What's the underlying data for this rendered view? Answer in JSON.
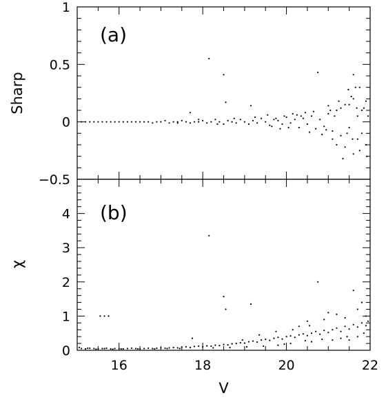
{
  "chart_data": [
    {
      "type": "scatter",
      "panel_label": "(a)",
      "ylabel": "Sharp",
      "xlabel": "",
      "xlim": [
        15,
        22
      ],
      "ylim": [
        -0.5,
        1
      ],
      "x_ticks": [
        "16",
        "18",
        "20",
        "22"
      ],
      "y_ticks": [
        "−0.5",
        "0",
        "0.5",
        "1"
      ],
      "x_tick_values": [
        16,
        18,
        20,
        22
      ],
      "y_tick_values": [
        -0.5,
        0,
        0.5,
        1
      ],
      "x_minor_step": 0.5,
      "y_minor_step": 0.1,
      "grid": false,
      "legend": "none",
      "color": "#000000",
      "points": [
        [
          15.1,
          0.0
        ],
        [
          15.2,
          0.0
        ],
        [
          15.3,
          0.0
        ],
        [
          15.4,
          0.0
        ],
        [
          15.5,
          0.0
        ],
        [
          15.6,
          0.0
        ],
        [
          15.7,
          0.0
        ],
        [
          15.8,
          0.0
        ],
        [
          15.9,
          0.0
        ],
        [
          16.0,
          0.0
        ],
        [
          16.1,
          0.0
        ],
        [
          16.2,
          0.0
        ],
        [
          16.3,
          0.0
        ],
        [
          16.4,
          0.0
        ],
        [
          16.5,
          0.0
        ],
        [
          16.6,
          0.0
        ],
        [
          16.7,
          0.0
        ],
        [
          16.8,
          -0.01
        ],
        [
          16.9,
          0.0
        ],
        [
          17.0,
          0.0
        ],
        [
          17.1,
          0.01
        ],
        [
          17.2,
          -0.01
        ],
        [
          17.3,
          0.0
        ],
        [
          17.4,
          0.0
        ],
        [
          17.5,
          0.01
        ],
        [
          17.6,
          0.0
        ],
        [
          17.7,
          -0.01
        ],
        [
          17.8,
          0.0
        ],
        [
          17.9,
          0.0
        ],
        [
          18.0,
          0.01
        ],
        [
          18.1,
          -0.01
        ],
        [
          18.2,
          0.0
        ],
        [
          18.3,
          0.02
        ],
        [
          18.4,
          0.0
        ],
        [
          18.5,
          -0.02
        ],
        [
          18.6,
          0.01
        ],
        [
          18.7,
          0.0
        ],
        [
          18.8,
          -0.01
        ],
        [
          18.9,
          0.02
        ],
        [
          19.0,
          0.0
        ],
        [
          19.1,
          -0.02
        ],
        [
          19.2,
          0.01
        ],
        [
          19.3,
          -0.01
        ],
        [
          19.4,
          0.03
        ],
        [
          19.5,
          0.0
        ],
        [
          19.6,
          -0.03
        ],
        [
          19.7,
          0.02
        ],
        [
          19.8,
          0.01
        ],
        [
          19.9,
          -0.02
        ],
        [
          20.0,
          0.04
        ],
        [
          20.1,
          -0.01
        ],
        [
          20.2,
          0.02
        ],
        [
          20.3,
          -0.05
        ],
        [
          20.4,
          0.03
        ],
        [
          20.5,
          -0.02
        ],
        [
          20.6,
          0.05
        ],
        [
          20.7,
          -0.06
        ],
        [
          20.8,
          0.02
        ],
        [
          20.9,
          -0.04
        ],
        [
          21.0,
          0.07
        ],
        [
          21.1,
          -0.08
        ],
        [
          21.2,
          0.1
        ],
        [
          21.3,
          -0.12
        ],
        [
          21.4,
          0.15
        ],
        [
          21.5,
          -0.05
        ],
        [
          21.6,
          0.2
        ],
        [
          21.7,
          -0.15
        ],
        [
          21.8,
          0.1
        ],
        [
          21.9,
          -0.2
        ],
        [
          21.95,
          0.05
        ],
        [
          21.35,
          -0.32
        ],
        [
          21.55,
          0.22
        ],
        [
          21.75,
          -0.25
        ],
        [
          21.65,
          0.3
        ],
        [
          21.85,
          0.12
        ],
        [
          21.25,
          0.18
        ],
        [
          21.45,
          -0.1
        ],
        [
          21.05,
          0.1
        ],
        [
          20.95,
          -0.07
        ],
        [
          21.15,
          0.05
        ],
        [
          18.15,
          0.55
        ],
        [
          18.5,
          0.41
        ],
        [
          18.55,
          0.17
        ],
        [
          20.75,
          0.43
        ],
        [
          21.6,
          0.41
        ],
        [
          21.75,
          0.3
        ],
        [
          19.15,
          0.14
        ],
        [
          17.7,
          0.08
        ],
        [
          20.15,
          0.07
        ],
        [
          20.45,
          0.08
        ],
        [
          19.55,
          0.06
        ],
        [
          19.85,
          -0.06
        ],
        [
          20.25,
          0.06
        ],
        [
          20.55,
          -0.09
        ],
        [
          20.65,
          0.09
        ],
        [
          20.85,
          -0.11
        ],
        [
          21.0,
          0.14
        ],
        [
          21.1,
          -0.15
        ],
        [
          21.2,
          -0.2
        ],
        [
          21.3,
          0.12
        ],
        [
          21.4,
          -0.22
        ],
        [
          21.5,
          0.15
        ],
        [
          21.6,
          -0.28
        ],
        [
          21.7,
          0.05
        ],
        [
          21.8,
          -0.1
        ],
        [
          21.9,
          0.18
        ],
        [
          21.92,
          -0.3
        ],
        [
          21.68,
          0.12
        ],
        [
          21.58,
          -0.15
        ],
        [
          21.48,
          0.28
        ],
        [
          17.4,
          -0.01
        ],
        [
          17.9,
          0.02
        ],
        [
          18.35,
          -0.02
        ],
        [
          18.75,
          0.03
        ],
        [
          19.25,
          0.04
        ],
        [
          19.65,
          -0.04
        ],
        [
          19.95,
          0.05
        ],
        [
          20.35,
          0.05
        ],
        [
          20.05,
          -0.05
        ],
        [
          19.75,
          0.03
        ]
      ]
    },
    {
      "type": "scatter",
      "panel_label": "(b)",
      "ylabel": "χ",
      "xlabel": "V",
      "xlim": [
        15,
        22
      ],
      "ylim": [
        0,
        5
      ],
      "x_ticks": [
        "16",
        "18",
        "20",
        "22"
      ],
      "y_ticks": [
        "0",
        "1",
        "2",
        "3",
        "4"
      ],
      "x_tick_values": [
        16,
        18,
        20,
        22
      ],
      "y_tick_values": [
        0,
        1,
        2,
        3,
        4
      ],
      "x_minor_step": 0.5,
      "y_minor_step": 0.2,
      "grid": false,
      "legend": "none",
      "color": "#000000",
      "points": [
        [
          15.1,
          0.05
        ],
        [
          15.2,
          0.04
        ],
        [
          15.3,
          0.06
        ],
        [
          15.4,
          0.05
        ],
        [
          15.5,
          0.04
        ],
        [
          15.6,
          0.05
        ],
        [
          15.7,
          0.06
        ],
        [
          15.8,
          0.04
        ],
        [
          15.9,
          0.05
        ],
        [
          16.0,
          0.05
        ],
        [
          16.1,
          0.04
        ],
        [
          16.2,
          0.05
        ],
        [
          16.3,
          0.06
        ],
        [
          16.4,
          0.05
        ],
        [
          16.5,
          0.04
        ],
        [
          16.6,
          0.05
        ],
        [
          16.7,
          0.06
        ],
        [
          16.8,
          0.05
        ],
        [
          16.9,
          0.06
        ],
        [
          17.0,
          0.07
        ],
        [
          17.1,
          0.06
        ],
        [
          17.2,
          0.07
        ],
        [
          17.3,
          0.08
        ],
        [
          17.4,
          0.07
        ],
        [
          17.5,
          0.09
        ],
        [
          17.6,
          0.1
        ],
        [
          17.7,
          0.08
        ],
        [
          17.8,
          0.11
        ],
        [
          17.9,
          0.12
        ],
        [
          18.0,
          0.1
        ],
        [
          18.1,
          0.13
        ],
        [
          18.2,
          0.12
        ],
        [
          18.3,
          0.15
        ],
        [
          18.4,
          0.14
        ],
        [
          18.5,
          0.17
        ],
        [
          18.6,
          0.16
        ],
        [
          18.7,
          0.19
        ],
        [
          18.8,
          0.2
        ],
        [
          18.9,
          0.22
        ],
        [
          19.0,
          0.21
        ],
        [
          19.1,
          0.25
        ],
        [
          19.2,
          0.27
        ],
        [
          19.3,
          0.24
        ],
        [
          19.4,
          0.3
        ],
        [
          19.5,
          0.32
        ],
        [
          19.6,
          0.29
        ],
        [
          19.7,
          0.35
        ],
        [
          19.8,
          0.38
        ],
        [
          19.9,
          0.33
        ],
        [
          20.0,
          0.4
        ],
        [
          20.1,
          0.42
        ],
        [
          20.2,
          0.38
        ],
        [
          20.3,
          0.45
        ],
        [
          20.4,
          0.48
        ],
        [
          20.5,
          0.43
        ],
        [
          20.6,
          0.5
        ],
        [
          20.7,
          0.55
        ],
        [
          20.8,
          0.47
        ],
        [
          20.9,
          0.58
        ],
        [
          21.0,
          0.52
        ],
        [
          21.1,
          0.6
        ],
        [
          21.2,
          0.65
        ],
        [
          21.3,
          0.55
        ],
        [
          21.4,
          0.7
        ],
        [
          21.5,
          0.62
        ],
        [
          21.6,
          0.75
        ],
        [
          21.7,
          0.68
        ],
        [
          21.8,
          0.8
        ],
        [
          21.9,
          0.72
        ],
        [
          21.95,
          0.85
        ],
        [
          15.55,
          1.0
        ],
        [
          15.65,
          1.0
        ],
        [
          15.75,
          1.0
        ],
        [
          18.15,
          3.35
        ],
        [
          18.5,
          1.57
        ],
        [
          18.55,
          1.2
        ],
        [
          19.15,
          1.35
        ],
        [
          20.75,
          2.0
        ],
        [
          21.6,
          1.75
        ],
        [
          21.8,
          1.4
        ],
        [
          21.0,
          1.1
        ],
        [
          21.2,
          1.05
        ],
        [
          21.4,
          0.95
        ],
        [
          21.7,
          1.2
        ],
        [
          21.9,
          1.0
        ],
        [
          20.5,
          0.85
        ],
        [
          20.3,
          0.7
        ],
        [
          20.9,
          0.9
        ],
        [
          21.5,
          0.3
        ],
        [
          21.3,
          0.35
        ],
        [
          20.1,
          0.2
        ],
        [
          19.8,
          0.15
        ],
        [
          20.6,
          0.25
        ],
        [
          21.1,
          0.3
        ],
        [
          21.7,
          0.4
        ],
        [
          21.85,
          0.5
        ],
        [
          21.45,
          0.4
        ],
        [
          20.85,
          0.32
        ],
        [
          20.45,
          0.28
        ],
        [
          19.95,
          0.18
        ],
        [
          19.45,
          0.12
        ],
        [
          19.05,
          0.1
        ],
        [
          18.65,
          0.08
        ],
        [
          18.25,
          0.07
        ],
        [
          17.75,
          0.35
        ],
        [
          18.95,
          0.3
        ],
        [
          19.35,
          0.45
        ],
        [
          19.75,
          0.55
        ],
        [
          20.15,
          0.6
        ],
        [
          20.55,
          0.72
        ],
        [
          17.45,
          0.05
        ],
        [
          17.15,
          0.05
        ],
        [
          16.85,
          0.04
        ],
        [
          16.45,
          0.04
        ],
        [
          16.05,
          0.04
        ],
        [
          15.65,
          0.05
        ],
        [
          15.25,
          0.06
        ],
        [
          15.05,
          0.08
        ],
        [
          15.45,
          0.03
        ],
        [
          15.85,
          0.03
        ]
      ]
    }
  ]
}
